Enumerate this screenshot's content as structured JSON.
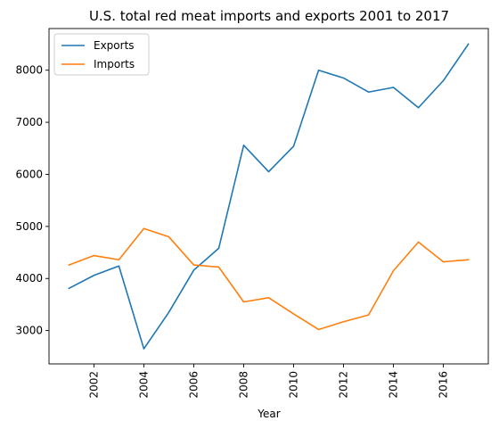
{
  "chart_data": {
    "type": "line",
    "title": "U.S. total red meat imports and exports 2001 to 2017",
    "xlabel": "Year",
    "ylabel": "",
    "x": [
      2001,
      2002,
      2003,
      2004,
      2005,
      2006,
      2007,
      2008,
      2009,
      2010,
      2011,
      2012,
      2013,
      2014,
      2015,
      2016,
      2017
    ],
    "xlim": [
      2000.2,
      2017.8
    ],
    "ylim": [
      2360,
      8800
    ],
    "xticks": [
      2002,
      2004,
      2006,
      2008,
      2010,
      2012,
      2014,
      2016
    ],
    "yticks": [
      3000,
      4000,
      5000,
      6000,
      7000,
      8000
    ],
    "grid": false,
    "legend_position": "top-left",
    "series": [
      {
        "name": "Exports",
        "color": "#1f77b4",
        "values": [
          3810,
          4060,
          4240,
          2650,
          3350,
          4160,
          4580,
          6560,
          6050,
          6540,
          8000,
          7850,
          7580,
          7670,
          7280,
          7800,
          8500
        ]
      },
      {
        "name": "Imports",
        "color": "#ff7f0e",
        "values": [
          4260,
          4440,
          4360,
          4960,
          4800,
          4260,
          4220,
          3550,
          3630,
          3320,
          3020,
          3170,
          3300,
          4150,
          4700,
          4320,
          4360
        ]
      }
    ]
  }
}
